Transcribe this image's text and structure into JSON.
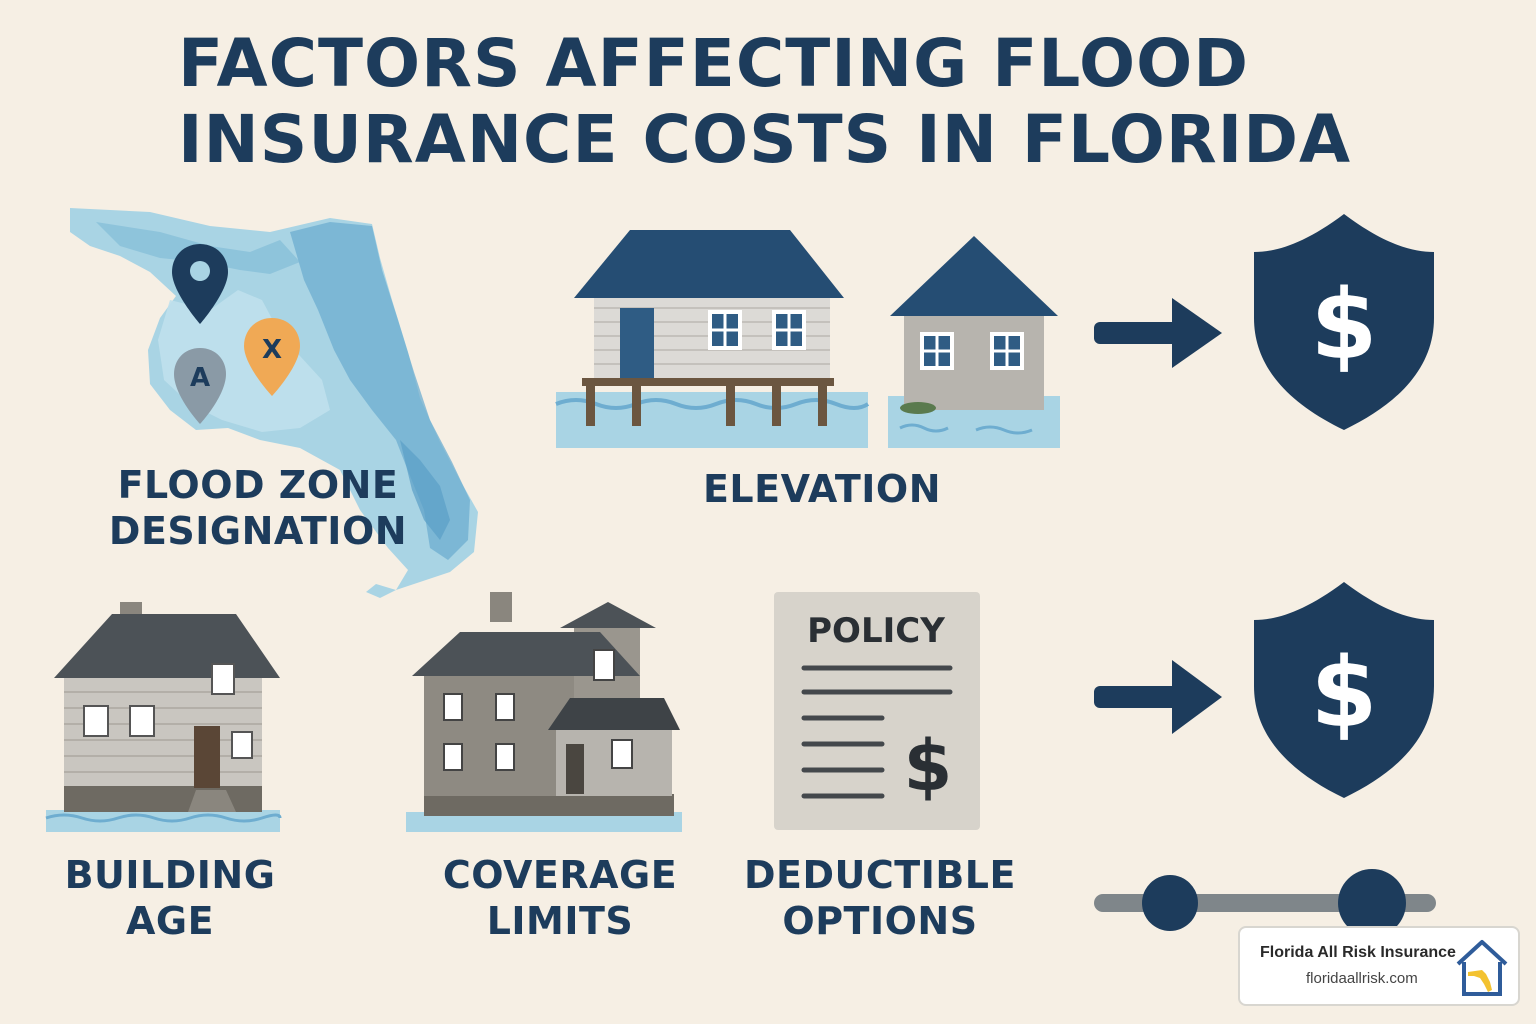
{
  "title": {
    "line1": "FACTORS AFFECTING FLOOD",
    "line2": "INSURANCE COSTS IN FLORIDA"
  },
  "map": {
    "pin_a": "A",
    "pin_x": "X"
  },
  "factors": {
    "flood_zone": {
      "line1": "FLOOD ZONE",
      "line2": "DESIGNATION"
    },
    "elevation": {
      "line1": "ELEVATION"
    },
    "building_age": {
      "line1": "BUILDING",
      "line2": "AGE"
    },
    "coverage_limits": {
      "line1": "COVERAGE",
      "line2": "LIMITS"
    },
    "deductible_options": {
      "line1": "DEDUCTIBLE",
      "line2": "OPTIONS"
    }
  },
  "policy_doc": {
    "heading": "POLICY",
    "symbol": "$"
  },
  "shield_symbol": "$",
  "brand": {
    "name": "Florida All Risk Insurance",
    "url": "floridaallrisk.com"
  },
  "colors": {
    "navy": "#1d3c5c",
    "background": "#f6efe4",
    "water": "#a9d4e4",
    "pin_orange": "#f0a955",
    "pin_gray": "#8a9aa6"
  },
  "icons": [
    "location-pin-icon",
    "shield-dollar-icon",
    "arrow-right-icon",
    "house-icon",
    "policy-document-icon",
    "slider-icon"
  ]
}
